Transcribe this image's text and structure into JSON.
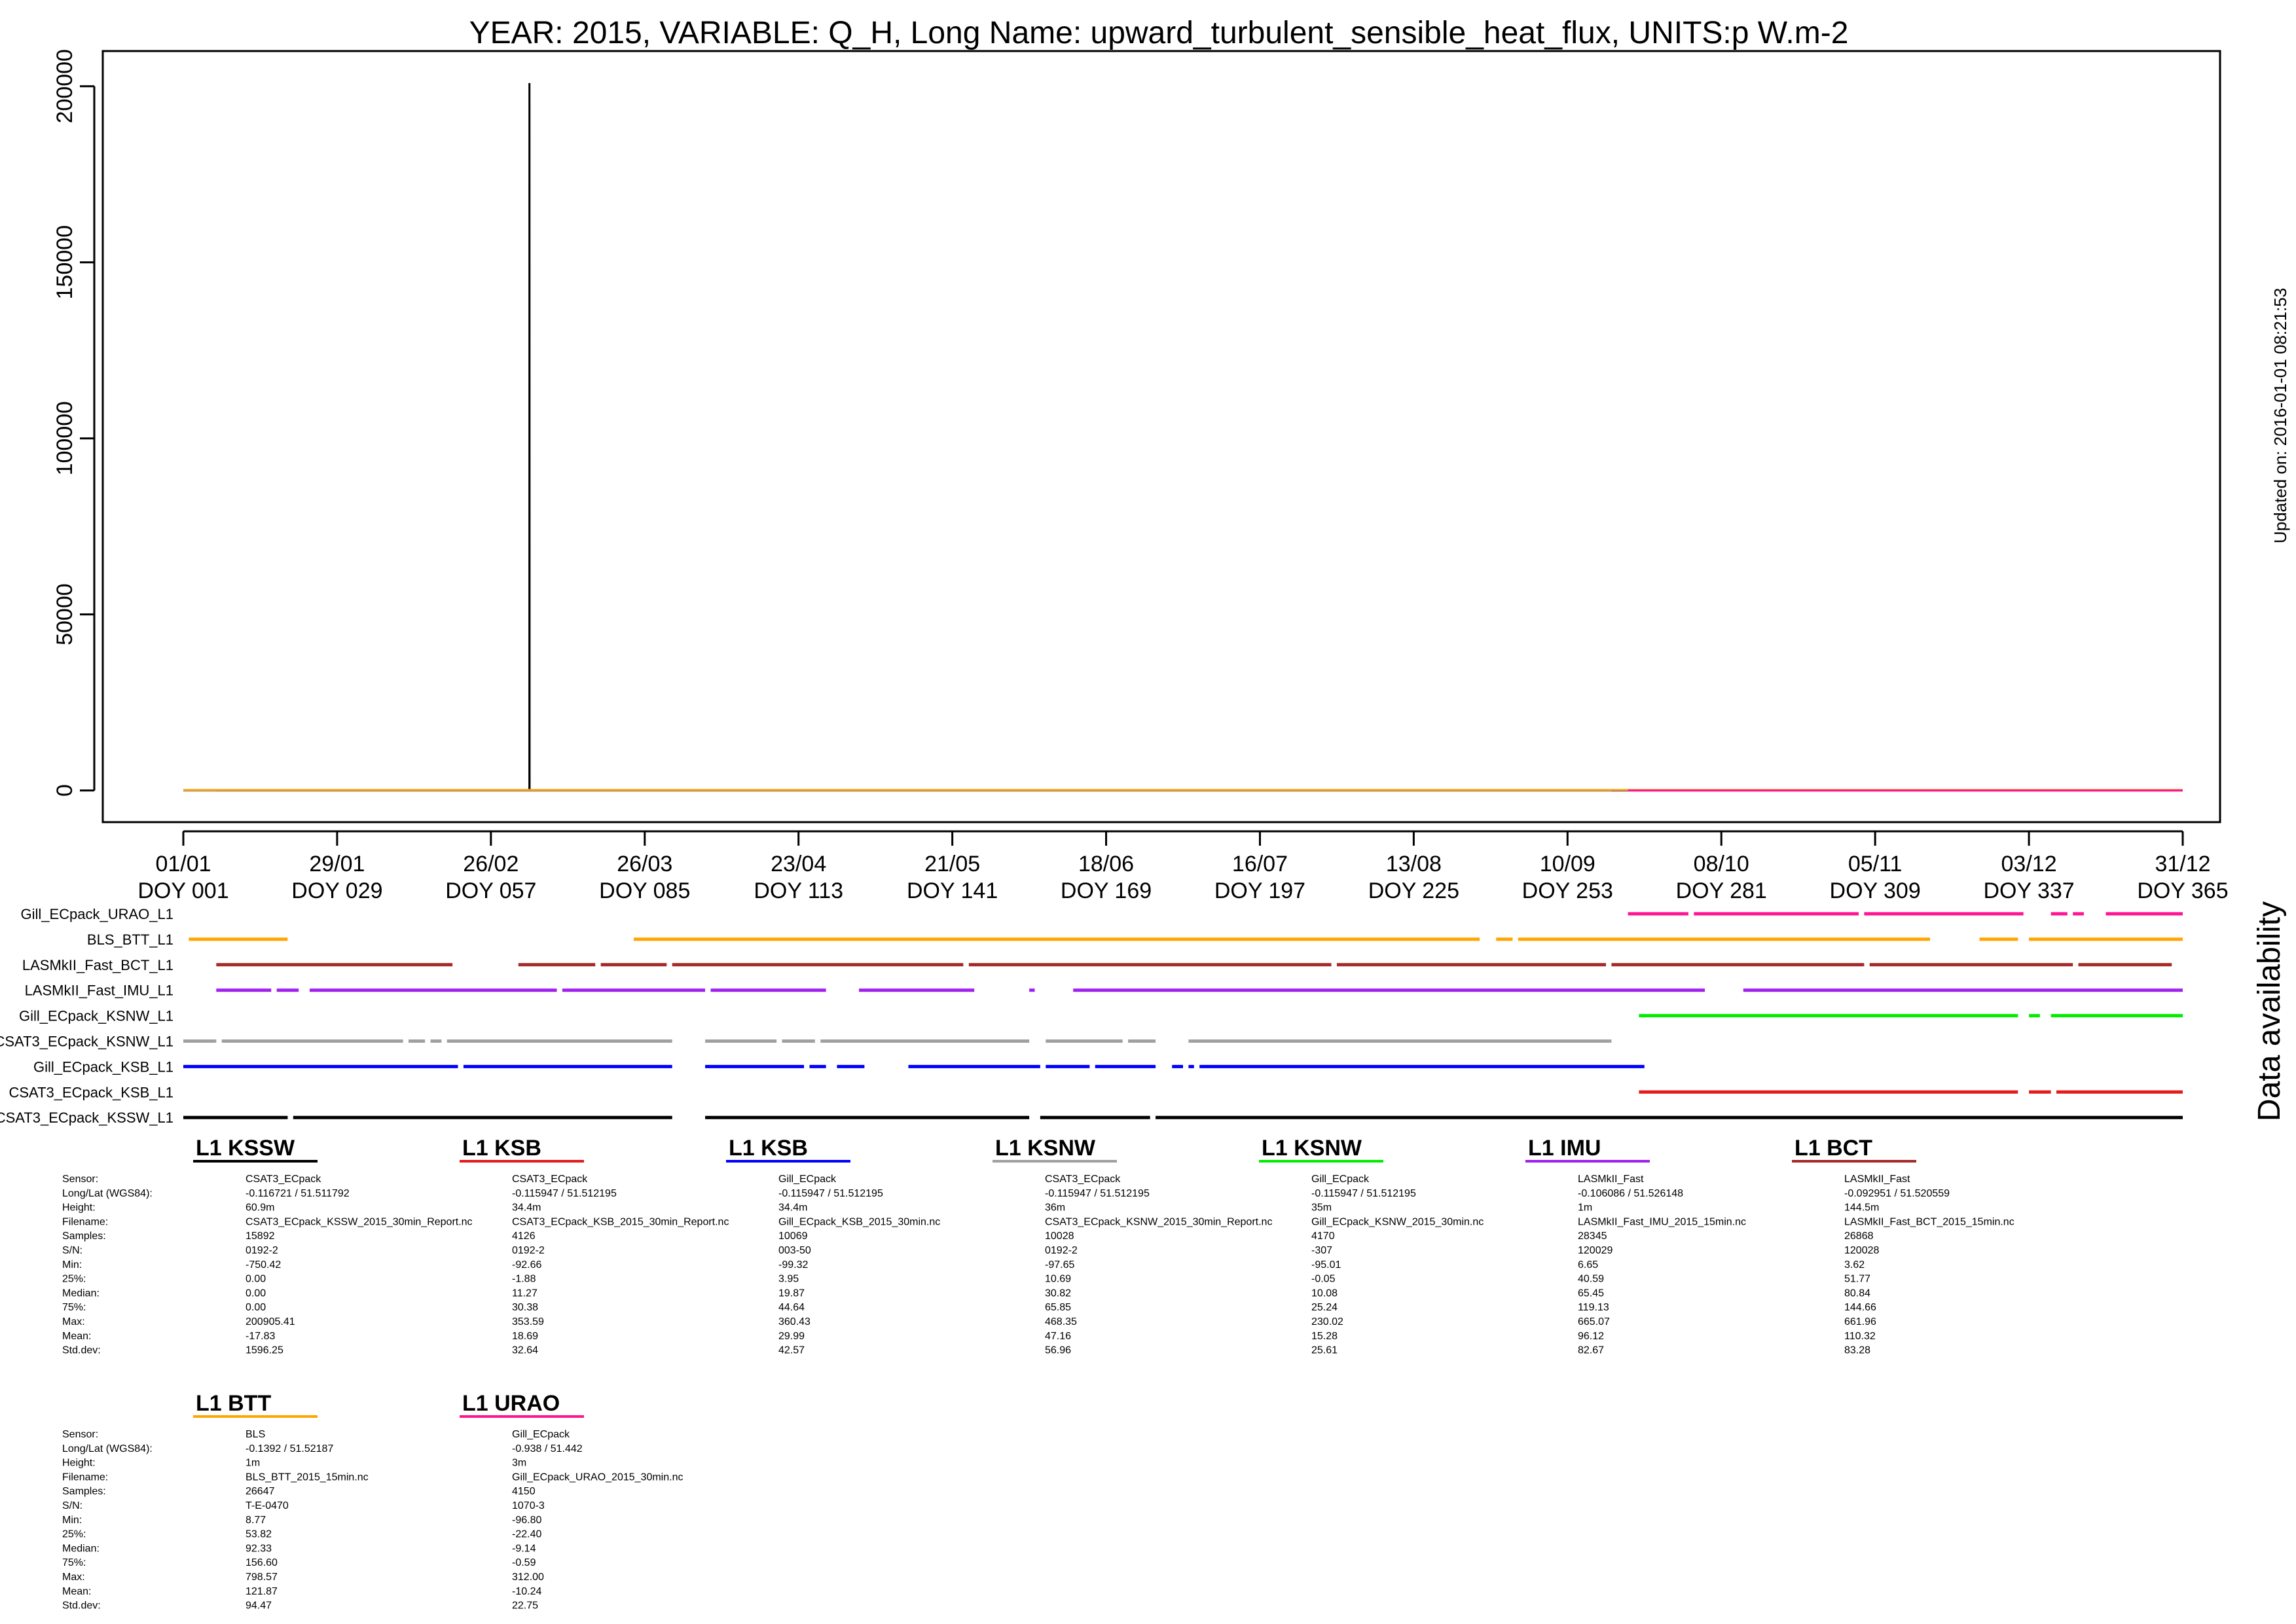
{
  "chart_data": {
    "type": "line",
    "title": "YEAR: 2015, VARIABLE: Q_H, Long Name: upward_turbulent_sensible_heat_flux, UNITS:p W.m-2",
    "updated_note": "Updated on: 2016-01-01 08:21:53",
    "xlabel": "",
    "ylabel": "",
    "xlim": [
      1,
      365
    ],
    "ylim": [
      -9000,
      210000
    ],
    "y_ticks": [
      0,
      50000,
      100000,
      150000,
      200000
    ],
    "y_tick_labels": [
      "0",
      "50000",
      "100000",
      "150000",
      "200000"
    ],
    "x_ticks": [
      {
        "doy": 1,
        "date": "01/01",
        "doy_label": "DOY 001"
      },
      {
        "doy": 29,
        "date": "29/01",
        "doy_label": "DOY 029"
      },
      {
        "doy": 57,
        "date": "26/02",
        "doy_label": "DOY 057"
      },
      {
        "doy": 85,
        "date": "26/03",
        "doy_label": "DOY 085"
      },
      {
        "doy": 113,
        "date": "23/04",
        "doy_label": "DOY 113"
      },
      {
        "doy": 141,
        "date": "21/05",
        "doy_label": "DOY 141"
      },
      {
        "doy": 169,
        "date": "18/06",
        "doy_label": "DOY 169"
      },
      {
        "doy": 197,
        "date": "16/07",
        "doy_label": "DOY 197"
      },
      {
        "doy": 225,
        "date": "13/08",
        "doy_label": "DOY 225"
      },
      {
        "doy": 253,
        "date": "10/09",
        "doy_label": "DOY 253"
      },
      {
        "doy": 281,
        "date": "08/10",
        "doy_label": "DOY 281"
      },
      {
        "doy": 309,
        "date": "05/11",
        "doy_label": "DOY 309"
      },
      {
        "doy": 337,
        "date": "03/12",
        "doy_label": "DOY 337"
      },
      {
        "doy": 365,
        "date": "31/12",
        "doy_label": "DOY 365"
      }
    ],
    "series": [
      {
        "name": "CSAT3_ECpack_KSSW_L1",
        "color": "#000000",
        "doy": [
          1,
          64,
          64.02,
          64.04,
          365
        ],
        "values": [
          0,
          0,
          200905,
          0,
          0
        ]
      },
      {
        "name": "CSAT3_ECpack_KSB_L1",
        "color": "#e41a1c",
        "doy": [
          266,
          365
        ],
        "values": [
          20,
          20
        ]
      },
      {
        "name": "Gill_ECpack_KSB_L1",
        "color": "#0000ff",
        "doy": [
          1,
          267
        ],
        "values": [
          25,
          25
        ]
      },
      {
        "name": "CSAT3_ECpack_KSNW_L1",
        "color": "#a0a0a0",
        "doy": [
          1,
          261
        ],
        "values": [
          30,
          30
        ]
      },
      {
        "name": "Gill_ECpack_KSNW_L1",
        "color": "#00ee00",
        "doy": [
          266,
          365
        ],
        "values": [
          10,
          10
        ]
      },
      {
        "name": "LASMkII_Fast_IMU_L1",
        "color": "#a020f0",
        "doy": [
          7,
          365
        ],
        "values": [
          95,
          95
        ]
      },
      {
        "name": "LASMkII_Fast_BCT_L1",
        "color": "#a52a2a",
        "doy": [
          7,
          363
        ],
        "values": [
          110,
          110
        ]
      },
      {
        "name": "BLS_BTT_L1",
        "color": "#ffa500",
        "doy": [
          1,
          365
        ],
        "values": [
          120,
          120
        ]
      },
      {
        "name": "Gill_ECpack_URAO_L1",
        "color": "#ff1493",
        "doy": [
          264,
          365
        ],
        "values": [
          -10,
          -10
        ]
      }
    ]
  },
  "availability": {
    "title": "Data availability",
    "rows": [
      {
        "name": "Gill_ECpack_URAO_L1",
        "color": "#ff1493",
        "segments": [
          [
            264,
            275
          ],
          [
            276,
            306
          ],
          [
            307,
            336
          ],
          [
            341,
            344
          ],
          [
            345,
            347
          ],
          [
            351,
            365
          ]
        ]
      },
      {
        "name": "BLS_BTT_L1",
        "color": "#ffa500",
        "segments": [
          [
            2,
            20
          ],
          [
            83,
            237
          ],
          [
            240,
            243
          ],
          [
            244,
            319
          ],
          [
            328,
            335
          ],
          [
            337,
            365
          ]
        ]
      },
      {
        "name": "LASMkII_Fast_BCT_L1",
        "color": "#a52a2a",
        "segments": [
          [
            7,
            50
          ],
          [
            62,
            76
          ],
          [
            77,
            89
          ],
          [
            90,
            143
          ],
          [
            144,
            210
          ],
          [
            211,
            260
          ],
          [
            261,
            307
          ],
          [
            308,
            345
          ],
          [
            346,
            363
          ]
        ]
      },
      {
        "name": "LASMkII_Fast_IMU_L1",
        "color": "#a020f0",
        "segments": [
          [
            7,
            17
          ],
          [
            18,
            22
          ],
          [
            24,
            69
          ],
          [
            70,
            96
          ],
          [
            97,
            118
          ],
          [
            124,
            145
          ],
          [
            155,
            156
          ],
          [
            163,
            278
          ],
          [
            285,
            365
          ]
        ]
      },
      {
        "name": "Gill_ECpack_KSNW_L1",
        "color": "#00ee00",
        "segments": [
          [
            266,
            335
          ],
          [
            337,
            339
          ],
          [
            341,
            365
          ]
        ]
      },
      {
        "name": "CSAT3_ECpack_KSNW_L1",
        "color": "#a0a0a0",
        "segments": [
          [
            1,
            7
          ],
          [
            8,
            41
          ],
          [
            42,
            45
          ],
          [
            46,
            48
          ],
          [
            49,
            90
          ],
          [
            96,
            109
          ],
          [
            110,
            116
          ],
          [
            117,
            155
          ],
          [
            158,
            172
          ],
          [
            173,
            178
          ],
          [
            184,
            261
          ]
        ]
      },
      {
        "name": "Gill_ECpack_KSB_L1",
        "color": "#0000ff",
        "segments": [
          [
            1,
            51
          ],
          [
            52,
            90
          ],
          [
            96,
            114
          ],
          [
            115,
            118
          ],
          [
            120,
            125
          ],
          [
            133,
            157
          ],
          [
            158,
            166
          ],
          [
            167,
            178
          ],
          [
            181,
            183
          ],
          [
            184,
            185
          ],
          [
            186,
            267
          ]
        ]
      },
      {
        "name": "CSAT3_ECpack_KSB_L1",
        "color": "#e41a1c",
        "segments": [
          [
            266,
            335
          ],
          [
            337,
            341
          ],
          [
            342,
            365
          ]
        ]
      },
      {
        "name": "CSAT3_ECpack_KSSW_L1",
        "color": "#000000",
        "segments": [
          [
            1,
            20
          ],
          [
            21,
            90
          ],
          [
            96,
            155
          ],
          [
            157,
            177
          ],
          [
            178,
            365
          ]
        ]
      }
    ]
  },
  "stats_labels": [
    "Sensor:",
    "Long/Lat (WGS84):",
    "Height:",
    "Filename:",
    "Samples:",
    "S/N:",
    "Min:",
    "25%:",
    "Median:",
    "75%:",
    "Max:",
    "Mean:",
    "Std.dev:"
  ],
  "stats_blocks": [
    {
      "title": "L1 KSSW",
      "color": "#000000",
      "values": [
        "CSAT3_ECpack",
        "-0.116721 / 51.511792",
        "60.9m",
        "CSAT3_ECpack_KSSW_2015_30min_Report.nc",
        "15892",
        "0192-2",
        "-750.42",
        "0.00",
        "0.00",
        "0.00",
        "200905.41",
        "-17.83",
        "1596.25"
      ]
    },
    {
      "title": "L1 KSB",
      "color": "#e41a1c",
      "values": [
        "CSAT3_ECpack",
        "-0.115947 / 51.512195",
        "34.4m",
        "CSAT3_ECpack_KSB_2015_30min_Report.nc",
        "4126",
        "0192-2",
        "-92.66",
        "-1.88",
        "11.27",
        "30.38",
        "353.59",
        "18.69",
        "32.64"
      ]
    },
    {
      "title": "L1 KSB",
      "color": "#0000ff",
      "values": [
        "Gill_ECpack",
        "-0.115947 / 51.512195",
        "34.4m",
        "Gill_ECpack_KSB_2015_30min.nc",
        "10069",
        "003-50",
        "-99.32",
        "3.95",
        "19.87",
        "44.64",
        "360.43",
        "29.99",
        "42.57"
      ]
    },
    {
      "title": "L1 KSNW",
      "color": "#a0a0a0",
      "values": [
        "CSAT3_ECpack",
        "-0.115947 / 51.512195",
        "36m",
        "CSAT3_ECpack_KSNW_2015_30min_Report.nc",
        "10028",
        "0192-2",
        "-97.65",
        "10.69",
        "30.82",
        "65.85",
        "468.35",
        "47.16",
        "56.96"
      ]
    },
    {
      "title": "L1 KSNW",
      "color": "#00ee00",
      "values": [
        "Gill_ECpack",
        "-0.115947 / 51.512195",
        "35m",
        "Gill_ECpack_KSNW_2015_30min.nc",
        "4170",
        "-307",
        "-95.01",
        "-0.05",
        "10.08",
        "25.24",
        "230.02",
        "15.28",
        "25.61"
      ]
    },
    {
      "title": "L1 IMU",
      "color": "#a020f0",
      "values": [
        "LASMkII_Fast",
        "-0.106086 / 51.526148",
        "1m",
        "LASMkII_Fast_IMU_2015_15min.nc",
        "28345",
        "120029",
        "6.65",
        "40.59",
        "65.45",
        "119.13",
        "665.07",
        "96.12",
        "82.67"
      ]
    },
    {
      "title": "L1 BCT",
      "color": "#a52a2a",
      "values": [
        "LASMkII_Fast",
        "-0.092951 / 51.520559",
        "144.5m",
        "LASMkII_Fast_BCT_2015_15min.nc",
        "26868",
        "120028",
        "3.62",
        "51.77",
        "80.84",
        "144.66",
        "661.96",
        "110.32",
        "83.28"
      ]
    },
    {
      "title": "L1 BTT",
      "color": "#ffa500",
      "values": [
        "BLS",
        "-0.1392 / 51.52187",
        "1m",
        "BLS_BTT_2015_15min.nc",
        "26647",
        "T-E-0470",
        "8.77",
        "53.82",
        "92.33",
        "156.60",
        "798.57",
        "121.87",
        "94.47"
      ]
    },
    {
      "title": "L1 URAO",
      "color": "#ff1493",
      "values": [
        "Gill_ECpack",
        "-0.938 / 51.442",
        "3m",
        "Gill_ECpack_URAO_2015_30min.nc",
        "4150",
        "1070-3",
        "-96.80",
        "-22.40",
        "-9.14",
        "-0.59",
        "312.00",
        "-10.24",
        "22.75"
      ]
    }
  ]
}
